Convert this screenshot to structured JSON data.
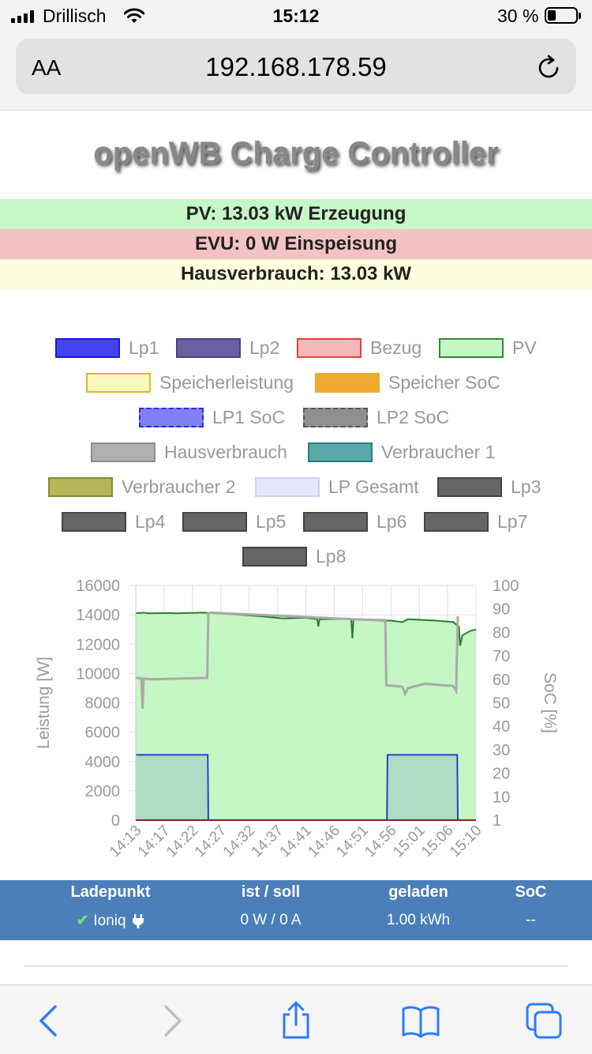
{
  "status_bar": {
    "carrier": "Drillisch",
    "time": "15:12",
    "battery_percent": "30 %",
    "battery_level": 0.3
  },
  "browser": {
    "text_size_label": "AA",
    "url": "192.168.178.59"
  },
  "page": {
    "title": "openWB Charge Controller",
    "pv_line": "PV: 13.03 kW Erzeugung",
    "evu_line": "EVU: 0 W Einspeisung",
    "haus_line": "Hausverbrauch: 13.03 kW",
    "info_colors": {
      "pv": "#c5f8c6",
      "evu": "#f4c2c2",
      "haus": "#fdfddf"
    }
  },
  "legend": [
    {
      "label": "Lp1",
      "fill": "#4444ee",
      "border": "#1a1adb",
      "dashed": false
    },
    {
      "label": "Lp2",
      "fill": "#6a5fa0",
      "border": "#4a3f80",
      "dashed": false
    },
    {
      "label": "Bezug",
      "fill": "#f5b8b8",
      "border": "#e04040",
      "dashed": false
    },
    {
      "label": "PV",
      "fill": "#c4f7c4",
      "border": "#2e8b2e",
      "dashed": false
    },
    {
      "label": "Speicherleistung",
      "fill": "#f8f8c0",
      "border": "#e8b030",
      "dashed": false
    },
    {
      "label": "Speicher SoC",
      "fill": "#f0a830",
      "border": "#f0a830",
      "dashed": true
    },
    {
      "label": "LP1 SoC",
      "fill": "#8080f0",
      "border": "#2a2ae0",
      "dashed": true
    },
    {
      "label": "LP2 SoC",
      "fill": "#909090",
      "border": "#555555",
      "dashed": true
    },
    {
      "label": "Hausverbrauch",
      "fill": "#b0b0b0",
      "border": "#8c8c8c",
      "dashed": false
    },
    {
      "label": "Verbraucher 1",
      "fill": "#5aa8a8",
      "border": "#2e7d7d",
      "dashed": false
    },
    {
      "label": "Verbraucher 2",
      "fill": "#b5b55a",
      "border": "#8a8a2a",
      "dashed": false
    },
    {
      "label": "LP Gesamt",
      "fill": "#e6e6fa",
      "border": "#cfcfee",
      "dashed": false
    },
    {
      "label": "Lp3",
      "fill": "#666666",
      "border": "#444444",
      "dashed": false
    },
    {
      "label": "Lp4",
      "fill": "#666666",
      "border": "#444444",
      "dashed": false
    },
    {
      "label": "Lp5",
      "fill": "#666666",
      "border": "#444444",
      "dashed": false
    },
    {
      "label": "Lp6",
      "fill": "#666666",
      "border": "#444444",
      "dashed": false
    },
    {
      "label": "Lp7",
      "fill": "#666666",
      "border": "#444444",
      "dashed": false
    },
    {
      "label": "Lp8",
      "fill": "#666666",
      "border": "#444444",
      "dashed": false
    }
  ],
  "chart_data": {
    "type": "area",
    "ylabel": "Leistung [W]",
    "y2label": "SoC [%]",
    "ylim": [
      0,
      16000
    ],
    "yticks": [
      0,
      2000,
      4000,
      6000,
      8000,
      10000,
      12000,
      14000,
      16000
    ],
    "y2ticks": [
      1,
      10,
      20,
      30,
      40,
      50,
      60,
      70,
      80,
      90,
      100
    ],
    "xticks": [
      "14:13",
      "14:17",
      "14:22",
      "14:27",
      "14:32",
      "14:37",
      "14:41",
      "14:46",
      "14:51",
      "14:56",
      "15:01",
      "15:06",
      "15:10"
    ],
    "x_minutes_range": [
      0,
      60
    ],
    "grid": true,
    "series": [
      {
        "name": "PV",
        "color": "#2e7d2e",
        "fill": "#c4f7c4",
        "points": [
          [
            0,
            14100
          ],
          [
            1.5,
            14150
          ],
          [
            2,
            14100
          ],
          [
            6,
            14120
          ],
          [
            7,
            14100
          ],
          [
            12,
            14150
          ],
          [
            13,
            14120
          ],
          [
            17,
            14050
          ],
          [
            22,
            13900
          ],
          [
            26,
            13750
          ],
          [
            30,
            13800
          ],
          [
            32,
            13700
          ],
          [
            32.2,
            13200
          ],
          [
            32.4,
            13700
          ],
          [
            38,
            13720
          ],
          [
            38.2,
            12400
          ],
          [
            38.4,
            13700
          ],
          [
            44,
            13650
          ],
          [
            44.2,
            13600
          ],
          [
            45,
            13600
          ],
          [
            47,
            13500
          ],
          [
            48,
            13700
          ],
          [
            53,
            13600
          ],
          [
            56,
            13500
          ],
          [
            57,
            13200
          ],
          [
            57.2,
            11900
          ],
          [
            57.6,
            12600
          ],
          [
            59,
            12900
          ],
          [
            60,
            13000
          ]
        ]
      },
      {
        "name": "Hausverbrauch",
        "color": "#aaaaaa",
        "fill": "none",
        "points": [
          [
            0,
            9700
          ],
          [
            1,
            9650
          ],
          [
            1.2,
            7600
          ],
          [
            1.4,
            9650
          ],
          [
            3,
            9600
          ],
          [
            12.6,
            9700
          ],
          [
            12.8,
            14100
          ],
          [
            13.2,
            14150
          ],
          [
            44,
            13600
          ],
          [
            44.2,
            9200
          ],
          [
            47,
            9100
          ],
          [
            47.5,
            8600
          ],
          [
            48,
            9000
          ],
          [
            51,
            9300
          ],
          [
            54,
            9200
          ],
          [
            56,
            9150
          ],
          [
            56.5,
            8800
          ],
          [
            56.8,
            13900
          ]
        ]
      },
      {
        "name": "Lp1",
        "color": "#2a3fc8",
        "fill": "rgba(60,110,200,0.18)",
        "points": [
          [
            0,
            4450
          ],
          [
            12.7,
            4450
          ],
          [
            12.8,
            0
          ],
          [
            44.3,
            0
          ],
          [
            44.4,
            4450
          ],
          [
            56.7,
            4450
          ],
          [
            56.8,
            0
          ],
          [
            60,
            0
          ]
        ]
      }
    ]
  },
  "table": {
    "headers": [
      "Ladepunkt",
      "ist / soll",
      "geladen",
      "SoC"
    ],
    "rows": [
      {
        "name": "Ioniq",
        "ist_soll": "0 W / 0 A",
        "geladen": "1.00 kWh",
        "soc": "--"
      }
    ]
  }
}
